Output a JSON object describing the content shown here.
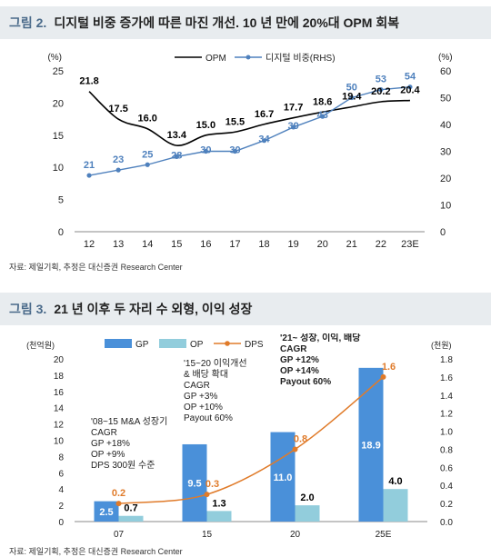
{
  "figure2": {
    "title_num": "그림 2.",
    "title_text": "디지털 비중 증가에 따른 마진 개선. 10 년 만에 20%대 OPM 회복",
    "source": "자료: 제일기획, 추정은 대신증권 Research Center",
    "colors": {
      "opm": "#000000",
      "digital": "#4f81bd",
      "label_opm": "#000000",
      "label_digital": "#4f81bd"
    },
    "chart_data": {
      "type": "line",
      "x": [
        "12",
        "13",
        "14",
        "15",
        "16",
        "17",
        "18",
        "19",
        "20",
        "21",
        "22",
        "23E"
      ],
      "series": [
        {
          "name": "OPM",
          "axis": "left",
          "values": [
            21.8,
            17.5,
            16.0,
            13.4,
            15.0,
            15.5,
            16.7,
            17.7,
            18.6,
            19.4,
            20.2,
            20.4
          ]
        },
        {
          "name": "디지털 비중(RHS)",
          "axis": "right",
          "values": [
            21,
            23,
            25,
            28,
            30,
            30,
            34,
            39,
            43,
            50,
            53,
            54
          ]
        }
      ],
      "y_left": {
        "unit": "(%)",
        "lim": [
          0,
          25
        ],
        "ticks": [
          "0",
          "5",
          "10",
          "15",
          "20",
          "25"
        ]
      },
      "y_right": {
        "unit": "(%)",
        "lim": [
          0,
          60
        ],
        "ticks": [
          "0",
          "10",
          "20",
          "30",
          "40",
          "50",
          "60"
        ]
      },
      "legend": [
        "OPM",
        "디지털 비중(RHS)"
      ],
      "legend_position": "top-center"
    }
  },
  "figure3": {
    "title_num": "그림 3.",
    "title_text": "21 년 이후 두 자리 수 외형, 이익 성장",
    "source": "자료: 제일기획, 추정은 대신증권 Research Center",
    "colors": {
      "gp": "#4a90d9",
      "op": "#92cddc",
      "dps": "#e07b2a",
      "gp_label": "#ffffff",
      "op_label": "#000000",
      "dps_label": "#e07b2a"
    },
    "chart_data": {
      "type": "bar",
      "categories": [
        "07",
        "15",
        "20",
        "25E"
      ],
      "series": [
        {
          "name": "GP",
          "axis": "left",
          "kind": "bar",
          "values": [
            2.5,
            9.5,
            11.0,
            18.9
          ],
          "labels": [
            "2.5",
            "9.5",
            "11.0",
            "18.9"
          ]
        },
        {
          "name": "OP",
          "axis": "left",
          "kind": "bar",
          "values": [
            0.7,
            1.3,
            2.0,
            4.0
          ],
          "labels": [
            "0.7",
            "1.3",
            "2.0",
            "4.0"
          ]
        },
        {
          "name": "DPS",
          "axis": "right",
          "kind": "line",
          "values": [
            0.2,
            0.3,
            0.8,
            1.6
          ],
          "labels": [
            "0.2",
            "0.3",
            "0.8",
            "1.6"
          ]
        }
      ],
      "y_left": {
        "unit": "(천억원)",
        "lim": [
          0,
          20
        ],
        "ticks": [
          "0",
          "2",
          "4",
          "6",
          "8",
          "10",
          "12",
          "14",
          "16",
          "18",
          "20"
        ]
      },
      "y_right": {
        "unit": "(천원)",
        "lim": [
          0,
          1.8
        ],
        "ticks": [
          "0.0",
          "0.2",
          "0.4",
          "0.6",
          "0.8",
          "1.0",
          "1.2",
          "1.4",
          "1.6",
          "1.8"
        ]
      },
      "legend": [
        "GP",
        "OP",
        "DPS"
      ],
      "legend_position": "top-left",
      "annotations": [
        {
          "id": "a1",
          "bold": false,
          "lines": [
            "'08~15 M&A 성장기",
            "CAGR",
            "GP +18%",
            "OP +9%",
            "DPS 300원 수준"
          ]
        },
        {
          "id": "a2",
          "bold": false,
          "lines": [
            "'15~20 이익개선",
            "& 배당 확대",
            "CAGR",
            "GP +3%",
            "OP +10%",
            "Payout 60%"
          ]
        },
        {
          "id": "a3",
          "bold": true,
          "lines": [
            "'21~ 성장, 이익, 배당",
            "CAGR",
            "GP +12%",
            "OP +14%",
            "Payout 60%"
          ]
        }
      ]
    }
  }
}
